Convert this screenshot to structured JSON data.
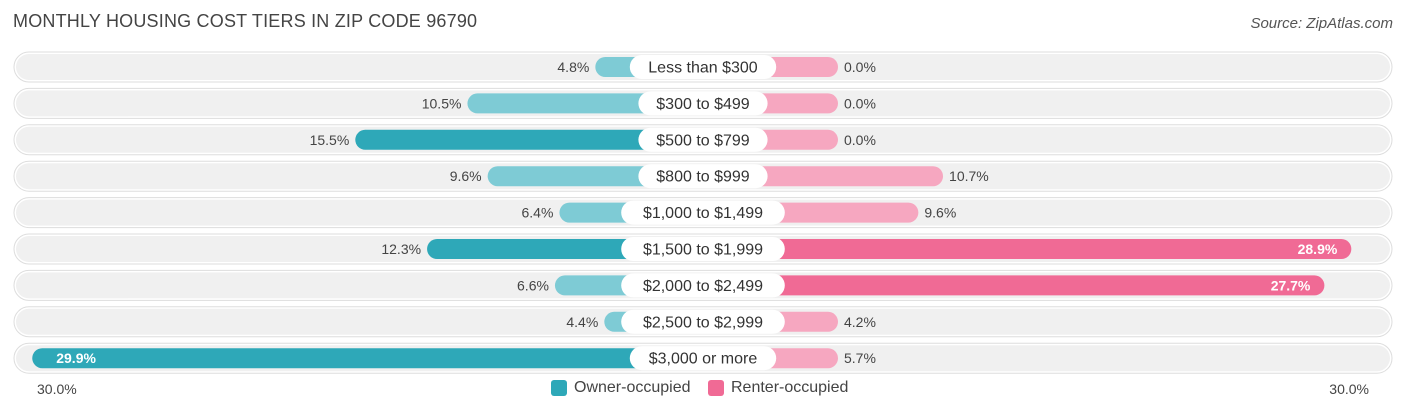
{
  "title": "MONTHLY HOUSING COST TIERS IN ZIP CODE 96790",
  "source": "Source: ZipAtlas.com",
  "axis": {
    "left_label": "30.0%",
    "right_label": "30.0%"
  },
  "legend": {
    "owner_label": "Owner-occupied",
    "renter_label": "Renter-occupied"
  },
  "colors": {
    "owner_strong": "#2ea8b8",
    "owner_light": "#7ecbd5",
    "renter_strong": "#f06a95",
    "renter_light": "#f6a7c0",
    "row_bg": "#f0f0f0"
  },
  "chart_data": {
    "type": "bar",
    "orientation": "horizontal-diverging",
    "xlim": [
      0,
      30
    ],
    "categories": [
      "Less than $300",
      "$300 to $499",
      "$500 to $799",
      "$800 to $999",
      "$1,000 to $1,499",
      "$1,500 to $1,999",
      "$2,000 to $2,499",
      "$2,500 to $2,999",
      "$3,000 or more"
    ],
    "series": [
      {
        "name": "Owner-occupied",
        "values": [
          4.8,
          10.5,
          15.5,
          9.6,
          6.4,
          12.3,
          6.6,
          4.4,
          29.9
        ],
        "labels": [
          "4.8%",
          "10.5%",
          "15.5%",
          "9.6%",
          "6.4%",
          "12.3%",
          "6.6%",
          "4.4%",
          "29.9%"
        ]
      },
      {
        "name": "Renter-occupied",
        "values": [
          0.0,
          0.0,
          0.0,
          10.7,
          9.6,
          28.9,
          27.7,
          4.2,
          5.7
        ],
        "labels": [
          "0.0%",
          "0.0%",
          "0.0%",
          "10.7%",
          "9.6%",
          "28.9%",
          "27.7%",
          "4.2%",
          "5.7%"
        ]
      }
    ]
  }
}
